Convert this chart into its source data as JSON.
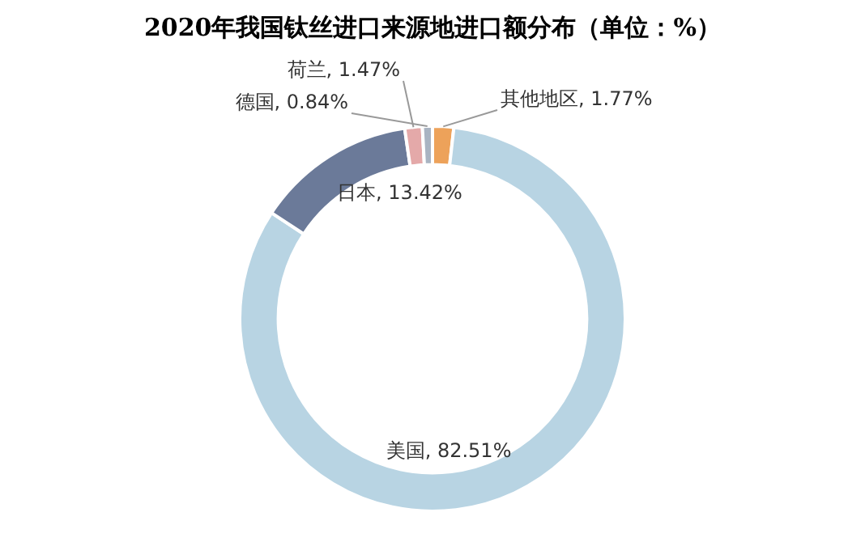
{
  "chart_data": {
    "type": "donut",
    "title": "2020年我国钛丝进口来源地进口额分布（单位：%）",
    "categories": [
      "其他地区",
      "美国",
      "日本",
      "荷兰",
      "德国"
    ],
    "values": [
      1.77,
      82.51,
      13.42,
      1.47,
      0.84
    ],
    "value_labels": [
      "1.77%",
      "82.51%",
      "13.42%",
      "1.47%",
      "0.84%"
    ],
    "colors": [
      "#eda25a",
      "#b8d4e3",
      "#6b7a99",
      "#e4a9a9",
      "#a9b4c2"
    ],
    "legend": false
  }
}
